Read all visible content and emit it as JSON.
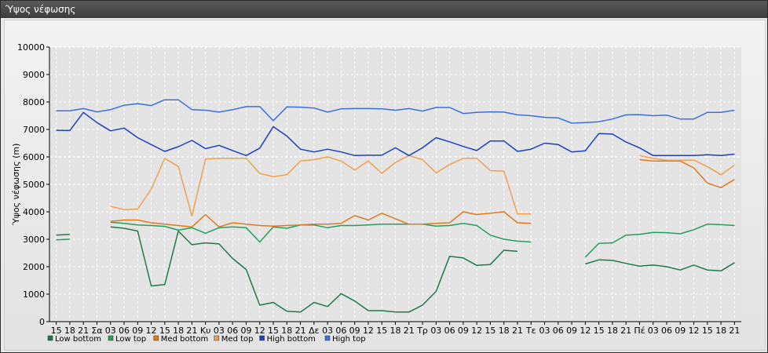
{
  "window": {
    "title": "Ύψος νέφωσης"
  },
  "chart_data": {
    "type": "line",
    "title": "",
    "xlabel": "",
    "ylabel": "Ύψος νέφωσης (m)",
    "ylim": [
      0,
      10000
    ],
    "yticks": [
      0,
      1000,
      2000,
      3000,
      4000,
      5000,
      6000,
      7000,
      8000,
      9000,
      10000
    ],
    "grid": true,
    "legend": "bottom-left",
    "x": [
      "15",
      "18",
      "21",
      "Σα",
      "03",
      "06",
      "09",
      "12",
      "15",
      "18",
      "21",
      "Κυ",
      "03",
      "06",
      "09",
      "12",
      "15",
      "18",
      "21",
      "Δε",
      "03",
      "06",
      "09",
      "12",
      "15",
      "18",
      "21",
      "Τρ",
      "03",
      "06",
      "09",
      "12",
      "15",
      "18",
      "21",
      "Τε",
      "03",
      "06",
      "09",
      "12",
      "15",
      "18",
      "21",
      "Πέ",
      "03",
      "06",
      "09",
      "12",
      "15",
      "18",
      "21"
    ],
    "series": [
      {
        "name": "Low bottom",
        "color": "#1e7a46",
        "values": [
          3150,
          3180,
          null,
          null,
          3450,
          3400,
          3300,
          1300,
          1350,
          3300,
          2800,
          2870,
          2830,
          2300,
          1900,
          600,
          700,
          380,
          350,
          700,
          550,
          1020,
          750,
          400,
          400,
          350,
          350,
          600,
          1100,
          2380,
          2320,
          2050,
          2080,
          2600,
          2560,
          null,
          null,
          null,
          null,
          2100,
          2250,
          2230,
          2120,
          2020,
          2060,
          2000,
          1880,
          2060,
          1880,
          1850,
          2150
        ]
      },
      {
        "name": "Low top",
        "color": "#22a05a",
        "values": [
          2980,
          3000,
          null,
          null,
          3620,
          3580,
          3520,
          3500,
          3470,
          3330,
          3420,
          3220,
          3420,
          3450,
          3420,
          2900,
          3450,
          3400,
          3520,
          3520,
          3420,
          3500,
          3500,
          3520,
          3550,
          3550,
          3550,
          3550,
          3480,
          3500,
          3580,
          3500,
          3150,
          3000,
          2930,
          2900,
          null,
          null,
          null,
          2350,
          2850,
          2870,
          3150,
          3180,
          3250,
          3240,
          3200,
          3350,
          3550,
          3530,
          3500
        ]
      },
      {
        "name": "Med bottom",
        "color": "#e07a1e",
        "values": [
          null,
          null,
          null,
          null,
          3650,
          3700,
          3700,
          3600,
          3550,
          3500,
          3450,
          3900,
          3450,
          3600,
          3550,
          3500,
          3480,
          3500,
          3520,
          3550,
          3550,
          3580,
          3860,
          3700,
          3950,
          3750,
          3550,
          3550,
          3580,
          3600,
          4000,
          3900,
          3950,
          4000,
          3600,
          3580,
          null,
          null,
          null,
          null,
          null,
          null,
          null,
          5900,
          5850,
          5850,
          5850,
          5600,
          5050,
          4880,
          5180
        ]
      },
      {
        "name": "Med top",
        "color": "#f0a050",
        "values": [
          null,
          null,
          null,
          null,
          4200,
          4080,
          4100,
          4830,
          5950,
          5650,
          3850,
          5920,
          5950,
          5950,
          5950,
          5400,
          5280,
          5350,
          5850,
          5900,
          6000,
          5850,
          5520,
          5850,
          5400,
          5800,
          6050,
          5900,
          5420,
          5720,
          5950,
          5950,
          5500,
          5480,
          3920,
          3920,
          null,
          null,
          null,
          null,
          null,
          null,
          null,
          6050,
          5950,
          5880,
          5880,
          5880,
          5650,
          5350,
          5700
        ]
      },
      {
        "name": "High bottom",
        "color": "#1a3fc0",
        "values": [
          6970,
          6960,
          7620,
          7250,
          6950,
          7050,
          6700,
          6450,
          6200,
          6370,
          6600,
          6300,
          6420,
          6230,
          6050,
          6320,
          7100,
          6760,
          6280,
          6180,
          6280,
          6180,
          6050,
          6060,
          6060,
          6330,
          6050,
          6330,
          6700,
          6550,
          6380,
          6230,
          6580,
          6580,
          6200,
          6280,
          6500,
          6450,
          6180,
          6220,
          6850,
          6830,
          6540,
          6330,
          6050,
          6050,
          6050,
          6050,
          6080,
          6050,
          6100
        ]
      },
      {
        "name": "High top",
        "color": "#3b6fe0",
        "values": [
          7680,
          7680,
          7760,
          7640,
          7720,
          7880,
          7940,
          7870,
          8080,
          8080,
          7720,
          7700,
          7630,
          7720,
          7830,
          7830,
          7320,
          7820,
          7810,
          7780,
          7630,
          7750,
          7760,
          7760,
          7750,
          7700,
          7760,
          7670,
          7800,
          7800,
          7580,
          7620,
          7640,
          7630,
          7530,
          7500,
          7440,
          7420,
          7230,
          7250,
          7280,
          7380,
          7530,
          7540,
          7500,
          7520,
          7380,
          7380,
          7620,
          7620,
          7700
        ]
      }
    ]
  }
}
